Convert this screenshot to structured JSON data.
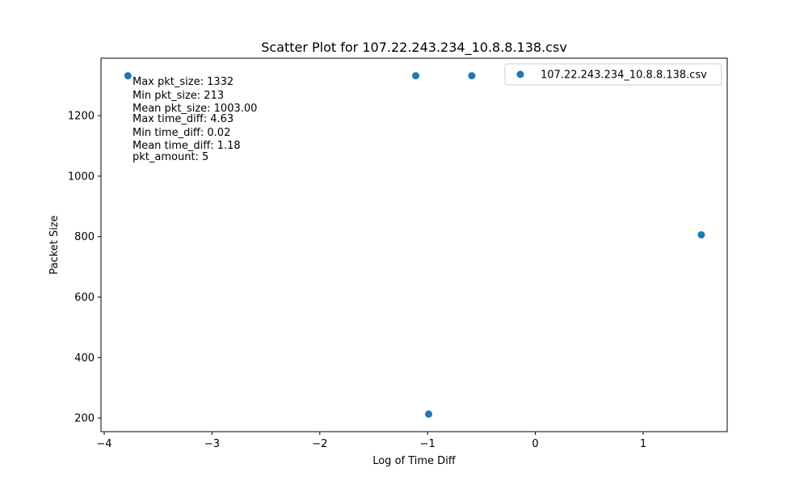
{
  "chart_data": {
    "type": "scatter",
    "title": "Scatter Plot for 107.22.243.234_10.8.8.138.csv",
    "xlabel": "Log of Time Diff",
    "ylabel": "Packet Size",
    "xlim": [
      -4.03,
      1.78
    ],
    "ylim": [
      155,
      1390
    ],
    "xticks": [
      -4,
      -3,
      -2,
      -1,
      0,
      1
    ],
    "xtick_labels": [
      "−4",
      "−3",
      "−2",
      "−1",
      "0",
      "1"
    ],
    "yticks": [
      200,
      400,
      600,
      800,
      1000,
      1200
    ],
    "ytick_labels": [
      "200",
      "400",
      "600",
      "800",
      "1000",
      "1200"
    ],
    "grid": false,
    "legend_position": "upper right",
    "series": [
      {
        "name": "107.22.243.234_10.8.8.138.csv",
        "color": "#1f77b4",
        "marker": "circle",
        "points": [
          {
            "x": -3.78,
            "y": 1332
          },
          {
            "x": -1.11,
            "y": 1332
          },
          {
            "x": -0.59,
            "y": 1332
          },
          {
            "x": -0.99,
            "y": 213
          },
          {
            "x": 1.54,
            "y": 806
          }
        ]
      }
    ],
    "annotations": [
      "Max pkt_size: 1332",
      "Min pkt_size: 213",
      "Mean pkt_size: 1003.00",
      "Max time_diff: 4.63",
      "Min time_diff: 0.02",
      "Mean time_diff: 1.18",
      "pkt_amount: 5"
    ]
  }
}
